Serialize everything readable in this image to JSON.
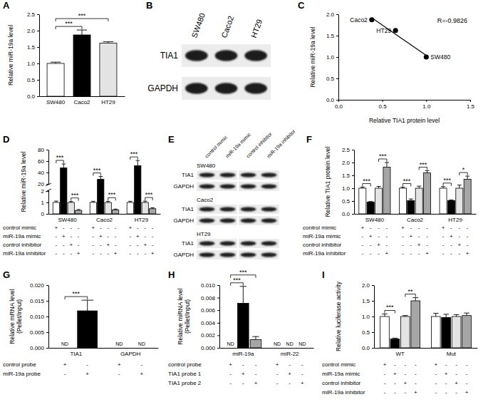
{
  "chart_data": [
    {
      "type": "bar",
      "title": "A",
      "ylabel": "Relative miR-19a level",
      "categories": [
        "SW480",
        "Caco2",
        "HT29"
      ],
      "values": [
        1.0,
        1.87,
        1.62
      ],
      "errors": [
        0.04,
        0.15,
        0.04
      ],
      "colors": [
        "#ffffff",
        "#000000",
        "#e3e3e3"
      ],
      "ylim": [
        0,
        2.5
      ],
      "yticks": [
        {
          "value": 0,
          "label": "0.0"
        },
        0.5,
        {
          "value": 1,
          "label": "1.0"
        },
        1.5,
        {
          "value": 2,
          "label": "2.0"
        },
        2.5
      ],
      "significance": [
        {
          "text": "***",
          "bars": [
            0,
            1
          ]
        },
        {
          "text": "***",
          "bars": [
            0,
            2
          ]
        }
      ]
    },
    {
      "type": "blot",
      "title": "B",
      "lanes": [
        "SW480",
        "Caco2",
        "HT29"
      ],
      "rows": [
        "TIA1",
        "GAPDH"
      ]
    },
    {
      "type": "scatter",
      "title": "C",
      "x": [
        1.0,
        0.38,
        0.65
      ],
      "values": [
        1.0,
        1.87,
        1.62
      ],
      "labels": [
        "SW480",
        "Caco2",
        "HT29"
      ],
      "xlabel": "Relative TIA1 protein level",
      "ylabel": "Relative miR-19a level",
      "xlim": [
        0,
        1.5
      ],
      "xticks": [
        {
          "value": 0,
          "label": "0.0"
        },
        0.5,
        {
          "value": 1,
          "label": "1.0"
        },
        1.5
      ],
      "ylim": [
        0,
        2.0
      ],
      "yticks": [
        {
          "value": 0,
          "label": "0.0"
        },
        0.5,
        {
          "value": 1,
          "label": "1.0"
        },
        1.5,
        {
          "value": 2,
          "label": "2.0"
        }
      ],
      "annotation": "R=-0.9826",
      "color": "#000000",
      "marker": "circle"
    },
    {
      "type": "bar",
      "title": "D",
      "ylabel": "Relative miR-19a level",
      "categories": [
        "SW480",
        "Caco2",
        "HT29"
      ],
      "series": [
        {
          "color": "#ffffff",
          "values": [
            1,
            1,
            1
          ],
          "errors": [
            0.12,
            0.1,
            0.1
          ]
        },
        {
          "color": "#000000",
          "values": [
            48,
            28,
            52
          ],
          "errors": [
            7,
            5,
            9
          ]
        },
        {
          "color": "#e3e3e3",
          "values": [
            1,
            1,
            1
          ],
          "errors": [
            0.08,
            0.1,
            0.12
          ]
        },
        {
          "color": "#a6a6a6",
          "values": [
            0.3,
            0.35,
            0.45
          ],
          "errors": [
            0.08,
            0.07,
            0.08
          ]
        }
      ],
      "ylim": [
        0,
        80
      ],
      "yticks": [
        0,
        1,
        2,
        20,
        40,
        60,
        80
      ],
      "y_break": [
        2,
        20
      ],
      "condition_rows": [
        {
          "label": "control mimic",
          "signs": [
            "+",
            "-",
            "-",
            "-",
            "+",
            "-",
            "-",
            "-",
            "+",
            "-",
            "-",
            "-"
          ]
        },
        {
          "label": "miR-19a mimic",
          "signs": [
            "-",
            "+",
            "-",
            "-",
            "-",
            "+",
            "-",
            "-",
            "-",
            "+",
            "-",
            "-"
          ]
        },
        {
          "label": "control inhibitor",
          "signs": [
            "-",
            "-",
            "+",
            "-",
            "-",
            "-",
            "+",
            "-",
            "-",
            "-",
            "+",
            "-"
          ]
        },
        {
          "label": "miR-19a inhibitor",
          "signs": [
            "-",
            "-",
            "-",
            "+",
            "-",
            "-",
            "-",
            "+",
            "-",
            "-",
            "-",
            "+"
          ]
        }
      ],
      "significance": [
        {
          "text": "***",
          "bars": [
            0,
            1
          ]
        },
        {
          "text": "***",
          "bars": [
            2,
            3
          ]
        },
        {
          "text": "***",
          "bars": [
            4,
            5
          ]
        },
        {
          "text": "***",
          "bars": [
            6,
            7
          ]
        },
        {
          "text": "***",
          "bars": [
            8,
            9
          ]
        },
        {
          "text": "***",
          "bars": [
            10,
            11
          ]
        }
      ]
    },
    {
      "type": "blot",
      "title": "E",
      "lanes": [
        "control mimic",
        "miR-19a mimic",
        "control inhibitor",
        "miR-19a inhibitor"
      ],
      "blocks": [
        {
          "label": "SW480",
          "rows": [
            "TIA1",
            "GAPDH"
          ]
        },
        {
          "label": "Caco2",
          "rows": [
            "TIA1",
            "GAPDH"
          ]
        },
        {
          "label": "HT29",
          "rows": [
            "TIA1",
            "GAPDH"
          ]
        }
      ]
    },
    {
      "type": "bar",
      "title": "F",
      "ylabel": "Relative TIA1 protein level",
      "categories": [
        "SW480",
        "Caco2",
        "HT29"
      ],
      "series": [
        {
          "color": "#ffffff",
          "values": [
            1,
            1,
            1
          ],
          "errors": [
            0.04,
            0.04,
            0.06
          ]
        },
        {
          "color": "#000000",
          "values": [
            0.46,
            0.52,
            0.52
          ],
          "errors": [
            0.02,
            0.06,
            0.02
          ]
        },
        {
          "color": "#e3e3e3",
          "values": [
            1,
            1,
            1
          ],
          "errors": [
            0.07,
            0.08,
            0.12
          ]
        },
        {
          "color": "#a6a6a6",
          "values": [
            1.82,
            1.6,
            1.35
          ],
          "errors": [
            0.18,
            0.08,
            0.12
          ]
        }
      ],
      "ylim": [
        0,
        2.5
      ],
      "yticks": [
        {
          "value": 0,
          "label": "0.0"
        },
        0.5,
        {
          "value": 1,
          "label": "1.0"
        },
        1.5,
        {
          "value": 2,
          "label": "2.0"
        },
        2.5
      ],
      "condition_rows": [
        {
          "label": "control mimic",
          "signs": [
            "+",
            "-",
            "-",
            "-",
            "+",
            "-",
            "-",
            "-",
            "+",
            "-",
            "-",
            "-"
          ]
        },
        {
          "label": "miR-19a mimic",
          "signs": [
            "-",
            "+",
            "-",
            "-",
            "-",
            "+",
            "-",
            "-",
            "-",
            "+",
            "-",
            "-"
          ]
        },
        {
          "label": "control inhibitor",
          "signs": [
            "-",
            "-",
            "+",
            "-",
            "-",
            "-",
            "+",
            "-",
            "-",
            "-",
            "+",
            "-"
          ]
        },
        {
          "label": "miR-19a inhibitor",
          "signs": [
            "-",
            "-",
            "-",
            "+",
            "-",
            "-",
            "-",
            "+",
            "-",
            "-",
            "-",
            "+"
          ]
        }
      ],
      "significance": [
        {
          "text": "***",
          "bars": [
            0,
            1
          ]
        },
        {
          "text": "***",
          "bars": [
            2,
            3
          ]
        },
        {
          "text": "***",
          "bars": [
            4,
            5
          ]
        },
        {
          "text": "***",
          "bars": [
            6,
            7
          ]
        },
        {
          "text": "***",
          "bars": [
            8,
            9
          ]
        },
        {
          "text": "*",
          "bars": [
            10,
            11
          ]
        }
      ]
    },
    {
      "type": "bar",
      "title": "G",
      "ylabel": [
        "Relative mRNA level",
        "(Pellet/Input)"
      ],
      "categories": [
        "TIA1",
        "GAPDH"
      ],
      "series": [
        {
          "color": "#ffffff",
          "values": [
            null,
            null
          ],
          "value_labels": [
            "ND",
            "ND"
          ]
        },
        {
          "color": "#000000",
          "values": [
            0.0118,
            null
          ],
          "errors": [
            0.0034,
            null
          ],
          "value_labels": [
            null,
            "ND"
          ]
        }
      ],
      "ylim": [
        0,
        0.02
      ],
      "yticks": [
        {
          "value": 0,
          "label": "0.000"
        },
        0.005,
        {
          "value": 0.01,
          "label": "0.010"
        },
        0.015,
        {
          "value": 0.02,
          "label": "0.020"
        }
      ],
      "condition_rows": [
        {
          "label": "control probe",
          "signs": [
            "+",
            "-",
            "+",
            "-"
          ]
        },
        {
          "label": "miR-19a probe",
          "signs": [
            "-",
            "+",
            "-",
            "+"
          ]
        }
      ],
      "significance": [
        {
          "text": "***",
          "bars": [
            0,
            1
          ]
        }
      ]
    },
    {
      "type": "bar",
      "title": "H",
      "ylabel": [
        "Relative miRNA level",
        "(Pellet/Input)"
      ],
      "categories": [
        "miR-19a",
        "miR-22"
      ],
      "series": [
        {
          "color": "#ffffff",
          "values": [
            null,
            null
          ],
          "value_labels": [
            "ND",
            "ND"
          ]
        },
        {
          "color": "#000000",
          "values": [
            0.0071,
            null
          ],
          "errors": [
            0.0027,
            null
          ],
          "value_labels": [
            null,
            "ND"
          ]
        },
        {
          "color": "#a6a6a6",
          "values": [
            0.0013,
            null
          ],
          "errors": [
            0.0005,
            null
          ],
          "value_labels": [
            null,
            "ND"
          ]
        }
      ],
      "ylim": [
        0,
        0.01
      ],
      "yticks": [
        {
          "value": 0,
          "label": "0.000"
        },
        0.002,
        0.004,
        0.006,
        0.008,
        {
          "value": 0.01,
          "label": "0.010"
        }
      ],
      "condition_rows": [
        {
          "label": "control probe",
          "signs": [
            "+",
            "-",
            "-",
            "+",
            "-",
            "-"
          ]
        },
        {
          "label": "TIA1 probe 1",
          "signs": [
            "-",
            "+",
            "-",
            "-",
            "+",
            "-"
          ]
        },
        {
          "label": "TIA1 probe 2",
          "signs": [
            "-",
            "-",
            "+",
            "-",
            "-",
            "+"
          ]
        }
      ],
      "significance": [
        {
          "text": "***",
          "bars": [
            0,
            1
          ]
        },
        {
          "text": "***",
          "bars": [
            0,
            2
          ]
        }
      ]
    },
    {
      "type": "bar",
      "title": "I",
      "ylabel": "Relative luciferase activity",
      "categories": [
        "WT",
        "Mut"
      ],
      "series": [
        {
          "color": "#ffffff",
          "values": [
            1,
            1
          ],
          "errors": [
            0.08,
            0.1
          ]
        },
        {
          "color": "#000000",
          "values": [
            0.28,
            0.97
          ],
          "errors": [
            0.03,
            0.1
          ]
        },
        {
          "color": "#e3e3e3",
          "values": [
            1,
            1
          ],
          "errors": [
            0.03,
            0.06
          ]
        },
        {
          "color": "#a6a6a6",
          "values": [
            1.5,
            1.03
          ],
          "errors": [
            0.1,
            0.08
          ]
        }
      ],
      "ylim": [
        0,
        2
      ],
      "yticks": [
        {
          "value": 0,
          "label": "0.0"
        },
        0.5,
        {
          "value": 1,
          "label": "1.0"
        },
        1.5,
        {
          "value": 2,
          "label": "2.0"
        }
      ],
      "condition_rows": [
        {
          "label": "control mimic",
          "signs": [
            "+",
            "-",
            "-",
            "-",
            "+",
            "-",
            "-",
            "-"
          ]
        },
        {
          "label": "miR-19a mimic",
          "signs": [
            "-",
            "+",
            "-",
            "-",
            "-",
            "+",
            "-",
            "-"
          ]
        },
        {
          "label": "control inhibitor",
          "signs": [
            "-",
            "-",
            "+",
            "-",
            "-",
            "-",
            "+",
            "-"
          ]
        },
        {
          "label": "miR-19a inhibitor",
          "signs": [
            "-",
            "-",
            "-",
            "+",
            "-",
            "-",
            "-",
            "+"
          ]
        }
      ],
      "significance": [
        {
          "text": "***",
          "bars": [
            0,
            1
          ]
        },
        {
          "text": "**",
          "bars": [
            2,
            3
          ]
        }
      ]
    }
  ]
}
